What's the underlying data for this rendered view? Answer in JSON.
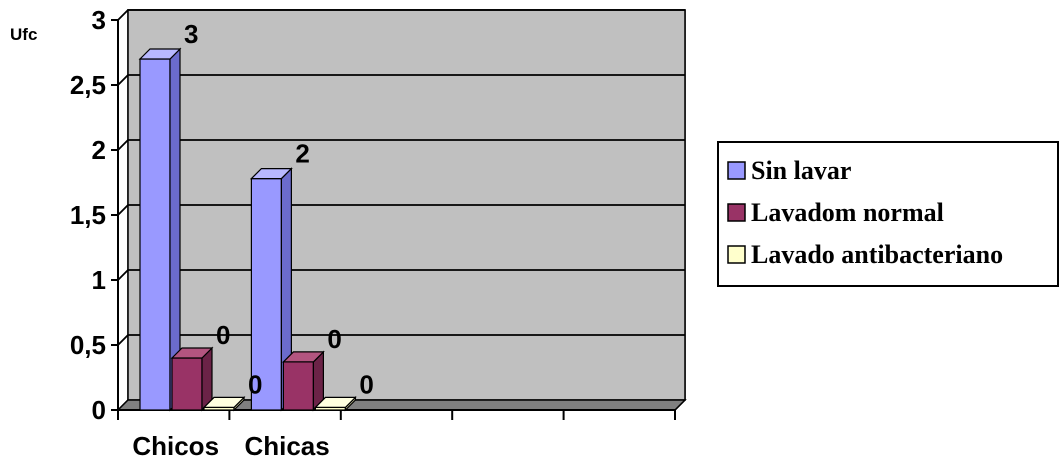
{
  "chart_data": {
    "type": "bar",
    "ylabel": "Ufc",
    "categories": [
      "Chicos",
      "Chicas",
      "",
      "",
      ""
    ],
    "ylim": [
      0,
      3
    ],
    "yticks": [
      "0",
      "0,5",
      "1",
      "1,5",
      "2",
      "2,5",
      "3"
    ],
    "grid": true,
    "legend_position": "right",
    "series": [
      {
        "name": "Sin lavar",
        "values": [
          2.7,
          1.78,
          null,
          null,
          null
        ],
        "labels": [
          "3",
          "2",
          "",
          "",
          ""
        ],
        "color": "#9999ff",
        "side": "#6b6bcc",
        "top": "#b8b8ff"
      },
      {
        "name": "Lavadom normal",
        "values": [
          0.4,
          0.37,
          null,
          null,
          null
        ],
        "labels": [
          "0",
          "0",
          "",
          "",
          ""
        ],
        "color": "#993366",
        "side": "#6b2347",
        "top": "#b35580"
      },
      {
        "name": "Lavado antibacteriano",
        "values": [
          0.02,
          0.02,
          null,
          null,
          null
        ],
        "labels": [
          "0",
          "0",
          "",
          "",
          ""
        ],
        "color": "#ffffcc",
        "side": "#d6d6a6",
        "top": "#ffffe0"
      }
    ],
    "colors": {
      "wall": "#c0c0c0",
      "floor": "#808080",
      "grid": "#000000"
    }
  }
}
